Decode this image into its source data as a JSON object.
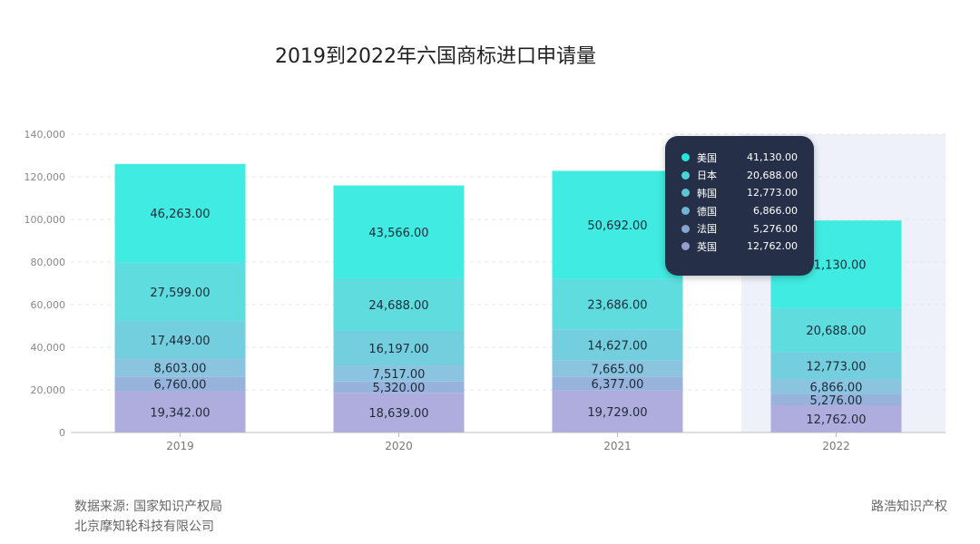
{
  "title": "2019到2022年六国商标进口申请量",
  "footer": {
    "source_line1": "数据来源: 国家知识产权局",
    "source_line2": "北京摩知轮科技有限公司",
    "brand": "路浩知识产权"
  },
  "chart_data": {
    "type": "bar",
    "stacked": true,
    "categories": [
      "2019",
      "2020",
      "2021",
      "2022"
    ],
    "ylim": [
      0,
      140000
    ],
    "yticks": [
      "0",
      "20,000",
      "40,000",
      "60,000",
      "80,000",
      "100,000",
      "120,000",
      "140,000"
    ],
    "grid": true,
    "highlighted_category": "2022",
    "series": [
      {
        "name": "英国",
        "color": "#aeaddd",
        "values": [
          19342,
          18639,
          19729,
          12762
        ],
        "labels": [
          "19,342.00",
          "18,639.00",
          "19,729.00",
          "12,762.00"
        ]
      },
      {
        "name": "法国",
        "color": "#97b3dc",
        "values": [
          6760,
          5320,
          6377,
          5276
        ],
        "labels": [
          "6,760.00",
          "5,320.00",
          "6,377.00",
          "5,276.00"
        ]
      },
      {
        "name": "德国",
        "color": "#8ac4df",
        "values": [
          8603,
          7517,
          7665,
          6866
        ],
        "labels": [
          "8,603.00",
          "7,517.00",
          "7,665.00",
          "6,866.00"
        ]
      },
      {
        "name": "韩国",
        "color": "#73cfde",
        "values": [
          17449,
          16197,
          14627,
          12773
        ],
        "labels": [
          "17,449.00",
          "16,197.00",
          "14,627.00",
          "12,773.00"
        ]
      },
      {
        "name": "日本",
        "color": "#5edcde",
        "values": [
          27599,
          24688,
          23686,
          20688
        ],
        "labels": [
          "27,599.00",
          "24,688.00",
          "23,686.00",
          "20,688.00"
        ]
      },
      {
        "name": "美国",
        "color": "#40ebe1",
        "values": [
          46263,
          43566,
          50692,
          41130
        ],
        "labels": [
          "46,263.00",
          "43,566.00",
          "50,692.00",
          "41,130.00"
        ]
      }
    ]
  },
  "tooltip": {
    "rows": [
      {
        "name": "美国",
        "value": "41,130.00",
        "color": "#22e6d8"
      },
      {
        "name": "日本",
        "value": "20,688.00",
        "color": "#45d6d6"
      },
      {
        "name": "韩国",
        "value": "12,773.00",
        "color": "#5cc6d6"
      },
      {
        "name": "德国",
        "value": "6,866.00",
        "color": "#6fb6d2"
      },
      {
        "name": "法国",
        "value": "5,276.00",
        "color": "#84a6d0"
      },
      {
        "name": "英国",
        "value": "12,762.00",
        "color": "#9b9bd4"
      }
    ]
  }
}
